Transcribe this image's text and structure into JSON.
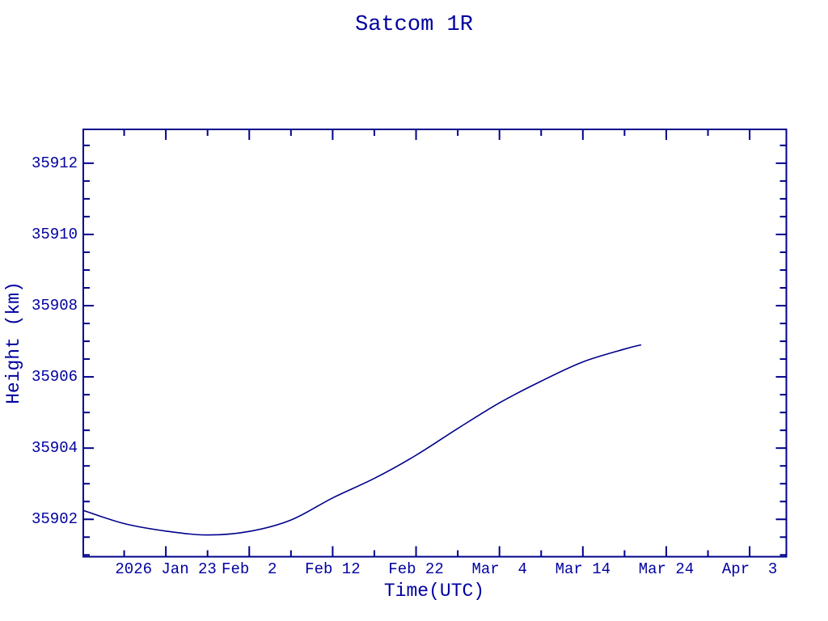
{
  "chart_data": {
    "type": "line",
    "title": "Satcom 1R",
    "xlabel": "Time(UTC)",
    "ylabel": "Height (km)",
    "grid": false,
    "legend": null,
    "background_color": "#ffffff",
    "line_color": "#00008B",
    "text_color": "#0000A0",
    "x_unit": "day of year 2026",
    "xlim": [
      13.1,
      97.4
    ],
    "ylim": [
      35900.95,
      35912.95
    ],
    "x_major_ticks": [
      {
        "day": 23,
        "label": "2026 Jan 23"
      },
      {
        "day": 33,
        "label": "Feb  2"
      },
      {
        "day": 43,
        "label": "Feb 12"
      },
      {
        "day": 53,
        "label": "Feb 22"
      },
      {
        "day": 63,
        "label": "Mar  4"
      },
      {
        "day": 73,
        "label": "Mar 14"
      },
      {
        "day": 83,
        "label": "Mar 24"
      },
      {
        "day": 93,
        "label": "Apr  3"
      }
    ],
    "x_minor_tick_days": [
      18,
      28,
      38,
      48,
      58,
      68,
      78,
      88
    ],
    "y_major_ticks": [
      {
        "value": 35902,
        "label": "35902"
      },
      {
        "value": 35904,
        "label": "35904"
      },
      {
        "value": 35906,
        "label": "35906"
      },
      {
        "value": 35908,
        "label": "35908"
      },
      {
        "value": 35910,
        "label": "35910"
      },
      {
        "value": 35912,
        "label": "35912"
      }
    ],
    "y_minor_tick_step": 0.5,
    "series": [
      {
        "name": "Satcom 1R height",
        "points": [
          {
            "date": "2026 Jan 13",
            "day": 13.1,
            "height_km": 35902.25
          },
          {
            "date": "2026 Jan 18",
            "day": 18,
            "height_km": 35901.88
          },
          {
            "date": "2026 Jan 23",
            "day": 23,
            "height_km": 35901.67
          },
          {
            "date": "2026 Jan 28",
            "day": 28,
            "height_km": 35901.56
          },
          {
            "date": "2026 Feb 2",
            "day": 33,
            "height_km": 35901.66
          },
          {
            "date": "2026 Feb 7",
            "day": 38,
            "height_km": 35901.98
          },
          {
            "date": "2026 Feb 12",
            "day": 43,
            "height_km": 35902.6
          },
          {
            "date": "2026 Feb 17",
            "day": 48,
            "height_km": 35903.15
          },
          {
            "date": "2026 Feb 22",
            "day": 53,
            "height_km": 35903.8
          },
          {
            "date": "2026 Feb 27",
            "day": 58,
            "height_km": 35904.55
          },
          {
            "date": "2026 Mar 4",
            "day": 63,
            "height_km": 35905.27
          },
          {
            "date": "2026 Mar 9",
            "day": 68,
            "height_km": 35905.88
          },
          {
            "date": "2026 Mar 14",
            "day": 73,
            "height_km": 35906.42
          },
          {
            "date": "2026 Mar 19",
            "day": 78,
            "height_km": 35906.78
          },
          {
            "date": "2026 Mar 21",
            "day": 80,
            "height_km": 35906.9
          }
        ]
      }
    ]
  }
}
